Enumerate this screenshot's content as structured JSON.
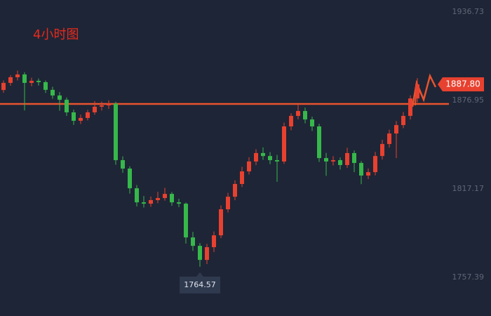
{
  "chart_data": {
    "type": "candlestick",
    "title": "4小时图",
    "candles": [
      [
        1884.0,
        1890.5,
        1882.1,
        1888.8
      ],
      [
        1888.8,
        1894.0,
        1886.9,
        1892.6
      ],
      [
        1892.6,
        1897.1,
        1890.4,
        1894.5
      ],
      [
        1894.5,
        1896.0,
        1870.2,
        1888.8
      ],
      [
        1888.8,
        1892.3,
        1886.5,
        1890.2
      ],
      [
        1890.2,
        1891.8,
        1887.0,
        1889.3
      ],
      [
        1889.3,
        1890.4,
        1882.0,
        1884.1
      ],
      [
        1884.1,
        1886.2,
        1878.1,
        1880.3
      ],
      [
        1880.3,
        1882.5,
        1870.0,
        1877.4
      ],
      [
        1877.4,
        1879.0,
        1866.5,
        1868.9
      ],
      [
        1868.9,
        1870.8,
        1860.4,
        1863.2
      ],
      [
        1863.2,
        1867.4,
        1861.0,
        1865.1
      ],
      [
        1865.1,
        1870.6,
        1863.5,
        1868.9
      ],
      [
        1868.9,
        1876.5,
        1867.2,
        1872.7
      ],
      [
        1872.7,
        1876.2,
        1870.1,
        1873.6
      ],
      [
        1873.6,
        1877.0,
        1871.2,
        1874.8
      ],
      [
        1874.8,
        1876.0,
        1833.5,
        1836.6
      ],
      [
        1836.6,
        1839.2,
        1828.0,
        1830.9
      ],
      [
        1830.9,
        1832.5,
        1814.0,
        1817.6
      ],
      [
        1817.6,
        1819.8,
        1805.3,
        1808.1
      ],
      [
        1808.1,
        1812.4,
        1804.6,
        1807.2
      ],
      [
        1807.2,
        1812.0,
        1805.1,
        1809.6
      ],
      [
        1809.6,
        1815.2,
        1807.5,
        1811.0
      ],
      [
        1811.0,
        1817.9,
        1809.2,
        1813.8
      ],
      [
        1813.8,
        1815.1,
        1805.8,
        1808.1
      ],
      [
        1808.1,
        1810.5,
        1804.9,
        1807.2
      ],
      [
        1807.2,
        1808.0,
        1780.2,
        1784.4
      ],
      [
        1784.4,
        1788.1,
        1775.3,
        1778.7
      ],
      [
        1778.7,
        1780.5,
        1764.57,
        1769.2
      ],
      [
        1769.2,
        1780.0,
        1766.4,
        1777.8
      ],
      [
        1777.8,
        1788.4,
        1774.5,
        1785.8
      ],
      [
        1785.8,
        1806.0,
        1783.9,
        1803.4
      ],
      [
        1803.4,
        1814.5,
        1801.2,
        1811.9
      ],
      [
        1811.9,
        1823.0,
        1809.5,
        1820.5
      ],
      [
        1820.5,
        1832.1,
        1818.4,
        1829.0
      ],
      [
        1829.0,
        1838.6,
        1826.9,
        1835.7
      ],
      [
        1835.7,
        1844.0,
        1833.2,
        1841.4
      ],
      [
        1841.4,
        1845.2,
        1836.8,
        1839.4
      ],
      [
        1839.4,
        1842.0,
        1833.9,
        1836.6
      ],
      [
        1836.6,
        1840.1,
        1822.0,
        1835.7
      ],
      [
        1835.7,
        1862.0,
        1834.1,
        1859.4
      ],
      [
        1859.4,
        1868.3,
        1856.8,
        1866.5
      ],
      [
        1866.5,
        1874.0,
        1864.2,
        1869.8
      ],
      [
        1869.8,
        1872.1,
        1861.5,
        1864.1
      ],
      [
        1864.1,
        1866.0,
        1856.3,
        1859.4
      ],
      [
        1859.4,
        1861.2,
        1835.4,
        1838.0
      ],
      [
        1838.0,
        1841.5,
        1826.0,
        1835.7
      ],
      [
        1835.7,
        1839.3,
        1833.0,
        1836.6
      ],
      [
        1836.6,
        1838.4,
        1830.2,
        1833.3
      ],
      [
        1833.3,
        1845.0,
        1831.4,
        1841.4
      ],
      [
        1841.4,
        1843.2,
        1828.5,
        1834.7
      ],
      [
        1834.7,
        1836.0,
        1820.4,
        1826.2
      ],
      [
        1826.2,
        1831.0,
        1823.8,
        1828.5
      ],
      [
        1828.5,
        1842.2,
        1826.3,
        1839.4
      ],
      [
        1839.4,
        1850.3,
        1837.0,
        1847.5
      ],
      [
        1847.5,
        1857.2,
        1845.1,
        1854.6
      ],
      [
        1854.6,
        1863.0,
        1838.0,
        1860.3
      ],
      [
        1860.3,
        1869.1,
        1858.2,
        1866.5
      ],
      [
        1866.5,
        1880.4,
        1864.0,
        1878.3
      ],
      [
        1878.3,
        1892.0,
        1875.6,
        1887.8
      ]
    ],
    "up_color": "#e8412f",
    "down_color": "#36b84a",
    "ylim": [
      1731.3,
      1944.8
    ],
    "yticks": [
      1936.73,
      1876.95,
      1817.17,
      1757.39
    ],
    "grid": false,
    "hline": 1874.6,
    "hline_color": "#e8542f",
    "last_price": {
      "value": 1887.8,
      "label": "1887.80"
    },
    "low_marker": 1764.57
  }
}
